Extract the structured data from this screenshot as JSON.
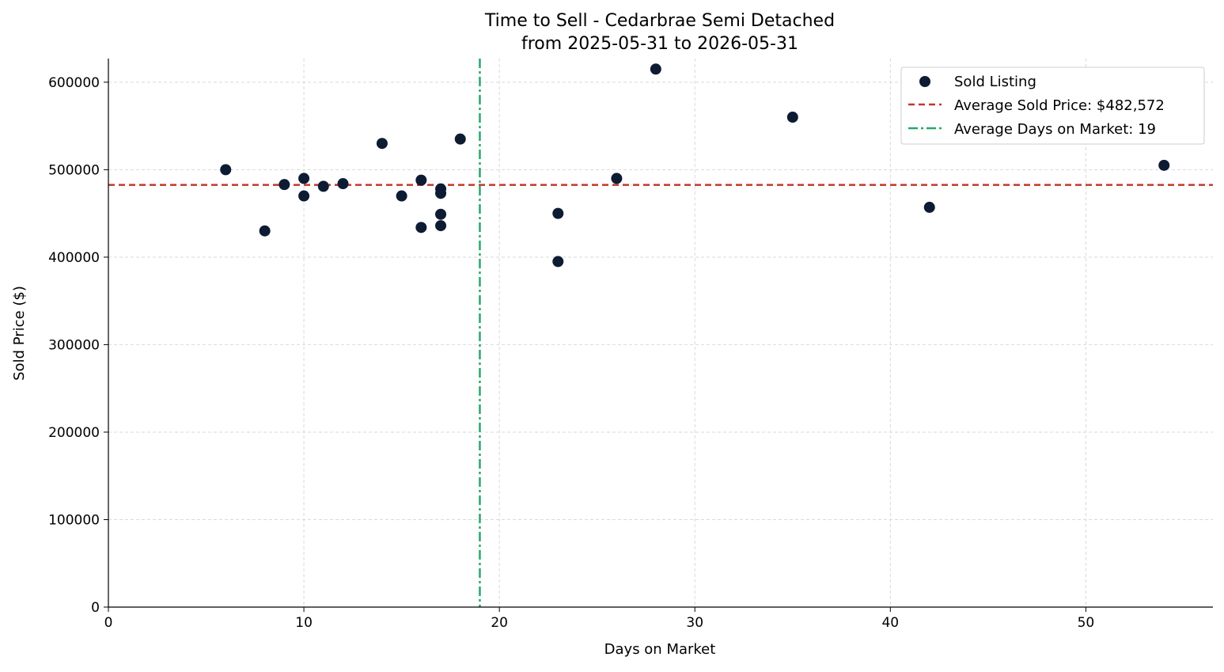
{
  "chart_data": {
    "type": "scatter",
    "title": "Time to Sell - Cedarbrae Semi Detached",
    "subtitle": "from 2025-05-31 to 2026-05-31",
    "xlabel": "Days on Market",
    "ylabel": "Sold Price ($)",
    "xlim": [
      0,
      56.5
    ],
    "ylim": [
      0,
      627000
    ],
    "x_ticks": [
      0,
      10,
      20,
      30,
      40,
      50
    ],
    "y_ticks": [
      0,
      100000,
      200000,
      300000,
      400000,
      500000,
      600000
    ],
    "x_tick_labels": [
      "0",
      "10",
      "20",
      "30",
      "40",
      "50"
    ],
    "y_tick_labels": [
      "0",
      "100000",
      "200000",
      "300000",
      "400000",
      "500000",
      "600000"
    ],
    "grid": true,
    "legend_position": "top-right",
    "series": [
      {
        "name": "Sold Listing",
        "color": "#0d1b33",
        "points": [
          {
            "x": 6,
            "y": 500000
          },
          {
            "x": 8,
            "y": 430000
          },
          {
            "x": 9,
            "y": 483000
          },
          {
            "x": 10,
            "y": 490000
          },
          {
            "x": 10,
            "y": 470000
          },
          {
            "x": 11,
            "y": 481000
          },
          {
            "x": 12,
            "y": 484000
          },
          {
            "x": 14,
            "y": 530000
          },
          {
            "x": 15,
            "y": 470000
          },
          {
            "x": 16,
            "y": 488000
          },
          {
            "x": 16,
            "y": 434000
          },
          {
            "x": 17,
            "y": 478000
          },
          {
            "x": 17,
            "y": 473000
          },
          {
            "x": 17,
            "y": 449000
          },
          {
            "x": 17,
            "y": 436000
          },
          {
            "x": 18,
            "y": 535000
          },
          {
            "x": 23,
            "y": 450000
          },
          {
            "x": 23,
            "y": 395000
          },
          {
            "x": 26,
            "y": 490000
          },
          {
            "x": 28,
            "y": 615000
          },
          {
            "x": 35,
            "y": 560000
          },
          {
            "x": 42,
            "y": 457000
          },
          {
            "x": 54,
            "y": 505000
          }
        ]
      }
    ],
    "reference_lines": [
      {
        "name": "Average Sold Price: $482,572",
        "orientation": "horizontal",
        "value": 482572,
        "style": "dashed",
        "color": "#c0392b"
      },
      {
        "name": "Average Days on Market: 19",
        "orientation": "vertical",
        "value": 19,
        "style": "dashdot",
        "color": "#27a86a"
      }
    ]
  }
}
